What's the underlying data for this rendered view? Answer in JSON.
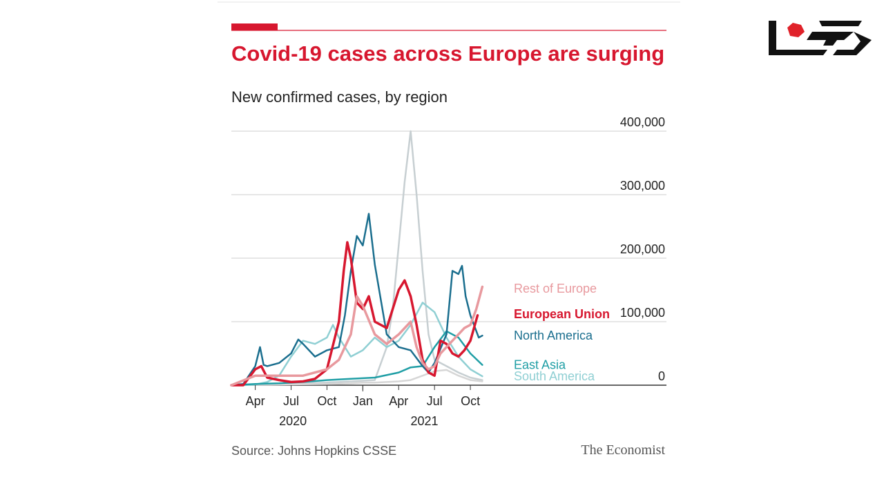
{
  "colors": {
    "accent": "#d7172f",
    "grid": "#cccccc",
    "axis": "#333333",
    "logo": "#111111",
    "logo_accent": "#e0222a"
  },
  "header": {
    "title": "Covid-19 cases across Europe are surging",
    "subtitle": "New confirmed cases, by region"
  },
  "footer": {
    "source": "Source: Johns Hopkins CSSE",
    "brand": "The Economist"
  },
  "logo": {
    "icon": "site-logo-icon",
    "text": ""
  },
  "chart_data": {
    "type": "line",
    "title": "Covid-19 cases across Europe are surging",
    "subtitle": "New confirmed cases, by region",
    "xlabel": "",
    "ylabel": "",
    "x_range": [
      0,
      23
    ],
    "ylim": [
      0,
      400000
    ],
    "y_ticks": [
      {
        "value": 0,
        "label": "0"
      },
      {
        "value": 100000,
        "label": "100,000"
      },
      {
        "value": 200000,
        "label": "200,000"
      },
      {
        "value": 300000,
        "label": "300,000"
      },
      {
        "value": 400000,
        "label": "400,000"
      }
    ],
    "x_ticks": [
      {
        "value": 2,
        "label": "Apr"
      },
      {
        "value": 5,
        "label": "Jul"
      },
      {
        "value": 8,
        "label": "Oct"
      },
      {
        "value": 11,
        "label": "Jan"
      },
      {
        "value": 14,
        "label": "Apr"
      },
      {
        "value": 17,
        "label": "Jul"
      },
      {
        "value": 20,
        "label": "Oct"
      }
    ],
    "year_labels": [
      {
        "value": 5.5,
        "label": "2020"
      },
      {
        "value": 16.5,
        "label": "2021"
      }
    ],
    "grid": true,
    "legend": "direct labels at line ends",
    "series": [
      {
        "name": "South America",
        "color": "#8fcfd3",
        "width": 2.5,
        "label_y": 14000,
        "points": [
          [
            0,
            0
          ],
          [
            1,
            0
          ],
          [
            2,
            1000
          ],
          [
            3,
            5000
          ],
          [
            4,
            15000
          ],
          [
            5,
            45000
          ],
          [
            6,
            70000
          ],
          [
            7,
            65000
          ],
          [
            8,
            75000
          ],
          [
            8.5,
            95000
          ],
          [
            9,
            75000
          ],
          [
            10,
            45000
          ],
          [
            11,
            55000
          ],
          [
            12,
            75000
          ],
          [
            13,
            60000
          ],
          [
            14,
            70000
          ],
          [
            15,
            95000
          ],
          [
            16,
            130000
          ],
          [
            17,
            115000
          ],
          [
            18,
            75000
          ],
          [
            19,
            45000
          ],
          [
            20,
            25000
          ],
          [
            21,
            14000
          ]
        ]
      },
      {
        "name": "East Asia",
        "color": "#1f9ea5",
        "width": 2.5,
        "label_y": 32000,
        "points": [
          [
            0,
            0
          ],
          [
            2,
            2000
          ],
          [
            4,
            3000
          ],
          [
            6,
            5000
          ],
          [
            8,
            8000
          ],
          [
            10,
            10000
          ],
          [
            12,
            12000
          ],
          [
            14,
            20000
          ],
          [
            15,
            28000
          ],
          [
            16,
            30000
          ],
          [
            17,
            60000
          ],
          [
            18,
            85000
          ],
          [
            19,
            75000
          ],
          [
            20,
            50000
          ],
          [
            21,
            32000
          ]
        ]
      },
      {
        "name": "North America",
        "color": "#1a6e8e",
        "width": 2.5,
        "label_y": 78000,
        "points": [
          [
            0,
            0
          ],
          [
            1,
            2000
          ],
          [
            2,
            30000
          ],
          [
            2.4,
            60000
          ],
          [
            2.7,
            32000
          ],
          [
            3,
            30000
          ],
          [
            4,
            35000
          ],
          [
            5,
            50000
          ],
          [
            5.6,
            72000
          ],
          [
            6,
            65000
          ],
          [
            7,
            45000
          ],
          [
            8,
            55000
          ],
          [
            9,
            60000
          ],
          [
            9.5,
            110000
          ],
          [
            10,
            180000
          ],
          [
            10.5,
            235000
          ],
          [
            11,
            220000
          ],
          [
            11.5,
            270000
          ],
          [
            12,
            190000
          ],
          [
            13,
            80000
          ],
          [
            14,
            60000
          ],
          [
            15,
            55000
          ],
          [
            16,
            30000
          ],
          [
            16.5,
            20000
          ],
          [
            17,
            35000
          ],
          [
            18,
            80000
          ],
          [
            18.5,
            180000
          ],
          [
            19,
            175000
          ],
          [
            19.3,
            188000
          ],
          [
            19.6,
            140000
          ],
          [
            20,
            110000
          ],
          [
            20.4,
            90000
          ],
          [
            20.7,
            75000
          ],
          [
            21,
            78000
          ]
        ]
      },
      {
        "name": "European Union",
        "color": "#d7172f",
        "width": 3.5,
        "label_y": 112000,
        "points": [
          [
            0,
            0
          ],
          [
            1,
            0
          ],
          [
            2,
            25000
          ],
          [
            2.5,
            30000
          ],
          [
            3,
            12000
          ],
          [
            4,
            8000
          ],
          [
            5,
            5000
          ],
          [
            6,
            6000
          ],
          [
            7,
            10000
          ],
          [
            8,
            25000
          ],
          [
            9,
            100000
          ],
          [
            9.4,
            180000
          ],
          [
            9.7,
            225000
          ],
          [
            10,
            200000
          ],
          [
            10.5,
            130000
          ],
          [
            11,
            120000
          ],
          [
            11.5,
            140000
          ],
          [
            12,
            100000
          ],
          [
            13,
            90000
          ],
          [
            14,
            150000
          ],
          [
            14.5,
            165000
          ],
          [
            15,
            140000
          ],
          [
            15.5,
            95000
          ],
          [
            16,
            40000
          ],
          [
            16.5,
            20000
          ],
          [
            17,
            15000
          ],
          [
            17.5,
            70000
          ],
          [
            18,
            65000
          ],
          [
            18.5,
            50000
          ],
          [
            19,
            45000
          ],
          [
            19.5,
            55000
          ],
          [
            20,
            70000
          ],
          [
            20.6,
            110000
          ]
        ]
      },
      {
        "name": "Rest of Europe",
        "color": "#e8999e",
        "width": 3.5,
        "label_y": 152000,
        "points": [
          [
            0,
            0
          ],
          [
            2,
            15000
          ],
          [
            4,
            15000
          ],
          [
            6,
            15000
          ],
          [
            8,
            25000
          ],
          [
            9,
            40000
          ],
          [
            10,
            80000
          ],
          [
            10.5,
            140000
          ],
          [
            11,
            125000
          ],
          [
            12,
            80000
          ],
          [
            13,
            65000
          ],
          [
            14,
            80000
          ],
          [
            15,
            100000
          ],
          [
            15.5,
            60000
          ],
          [
            16,
            35000
          ],
          [
            16.5,
            25000
          ],
          [
            17,
            30000
          ],
          [
            17.5,
            50000
          ],
          [
            18,
            60000
          ],
          [
            18.5,
            70000
          ],
          [
            19,
            80000
          ],
          [
            19.5,
            90000
          ],
          [
            20,
            95000
          ],
          [
            20.5,
            120000
          ],
          [
            21,
            155000
          ]
        ]
      },
      {
        "name": "",
        "color": "#c7cfd2",
        "width": 2.5,
        "label_y": null,
        "points": [
          [
            0,
            0
          ],
          [
            2,
            1000
          ],
          [
            4,
            2000
          ],
          [
            6,
            3000
          ],
          [
            8,
            4000
          ],
          [
            10,
            6000
          ],
          [
            12,
            8000
          ],
          [
            13,
            60000
          ],
          [
            13.5,
            120000
          ],
          [
            14,
            220000
          ],
          [
            14.5,
            320000
          ],
          [
            15,
            400000
          ],
          [
            15.5,
            300000
          ],
          [
            16,
            180000
          ],
          [
            16.5,
            80000
          ],
          [
            17,
            40000
          ],
          [
            18,
            30000
          ],
          [
            19,
            20000
          ],
          [
            20,
            12000
          ],
          [
            21,
            8000
          ]
        ]
      },
      {
        "name": "",
        "color": "#d6d6d6",
        "width": 2.5,
        "label_y": null,
        "points": [
          [
            0,
            0
          ],
          [
            4,
            1000
          ],
          [
            8,
            2000
          ],
          [
            10,
            3000
          ],
          [
            11,
            4000
          ],
          [
            12,
            4000
          ],
          [
            13,
            5000
          ],
          [
            14,
            6000
          ],
          [
            15,
            8000
          ],
          [
            16,
            15000
          ],
          [
            17,
            22000
          ],
          [
            18,
            24000
          ],
          [
            19,
            15000
          ],
          [
            20,
            8000
          ],
          [
            21,
            6000
          ]
        ]
      }
    ]
  }
}
